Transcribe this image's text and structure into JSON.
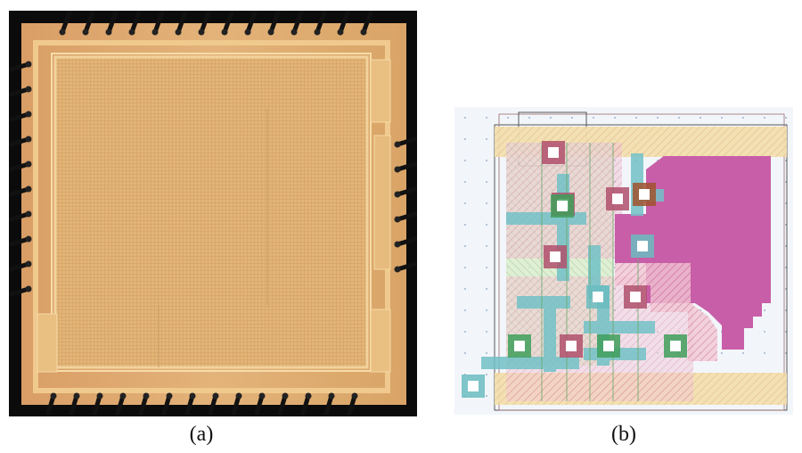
{
  "figure": {
    "panels": [
      {
        "id": "a",
        "caption": "(a)"
      },
      {
        "id": "b",
        "caption": "(b)"
      }
    ]
  },
  "colors": {
    "package": "#0b0b0b",
    "die": "#d9a56a",
    "die_core": "#d7a463",
    "bond_wire": "#111111",
    "layout_bg": "#eef3f9",
    "metal_magenta": "#c65aa6",
    "poly_teal": "#6bbcc0",
    "diffusion_tan": "#e8c79a",
    "contact_white": "#ffffff",
    "via_green": "#3fbf5a",
    "via_brown": "#a0522d"
  }
}
